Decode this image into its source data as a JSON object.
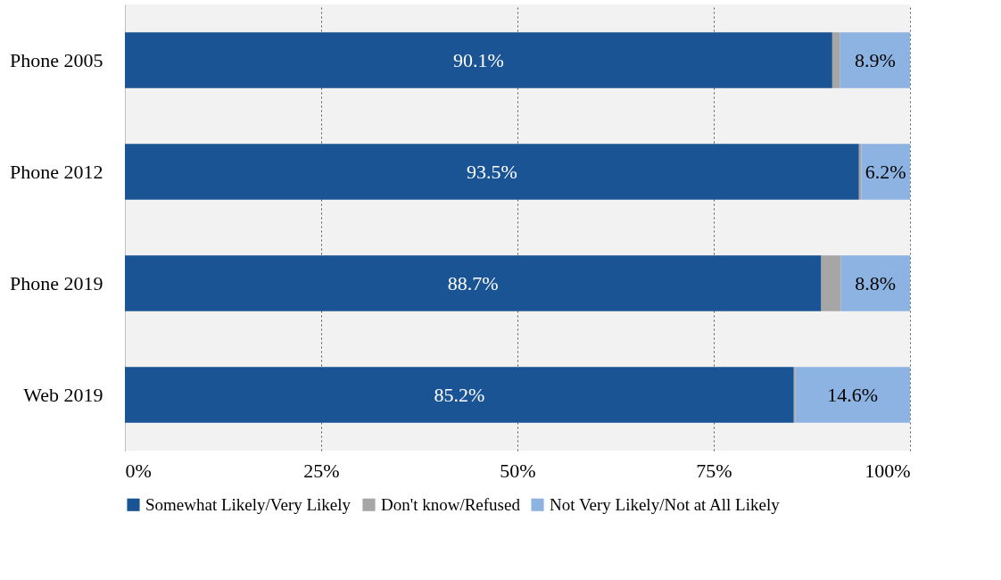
{
  "chart_data": {
    "type": "bar",
    "orientation": "horizontal",
    "stacked": true,
    "categories": [
      "Phone 2005",
      "Phone 2012",
      "Phone 2019",
      "Web 2019"
    ],
    "series": [
      {
        "name": "Somewhat Likely/Very Likely",
        "color": "#1a5494",
        "values": [
          90.1,
          93.5,
          88.7,
          85.2
        ],
        "value_labels": [
          "90.1%",
          "93.5%",
          "88.7%",
          "85.2%"
        ]
      },
      {
        "name": "Don't know/Refused",
        "color": "#a6a6a6",
        "values": [
          1.0,
          0.3,
          2.5,
          0.2
        ]
      },
      {
        "name": "Not Very Likely/Not at All Likely",
        "color": "#8db3e2",
        "values": [
          8.9,
          6.2,
          8.8,
          14.6
        ],
        "value_labels": [
          "8.9%",
          "6.2%",
          "8.8%",
          "14.6%"
        ]
      }
    ],
    "xlim": [
      0,
      100
    ],
    "xticks": [
      {
        "value": 0,
        "label": "0%"
      },
      {
        "value": 25,
        "label": "25%"
      },
      {
        "value": 50,
        "label": "50%"
      },
      {
        "value": 75,
        "label": "75%"
      },
      {
        "value": 100,
        "label": "100%"
      }
    ],
    "grid": "x",
    "legend": "bottom"
  }
}
